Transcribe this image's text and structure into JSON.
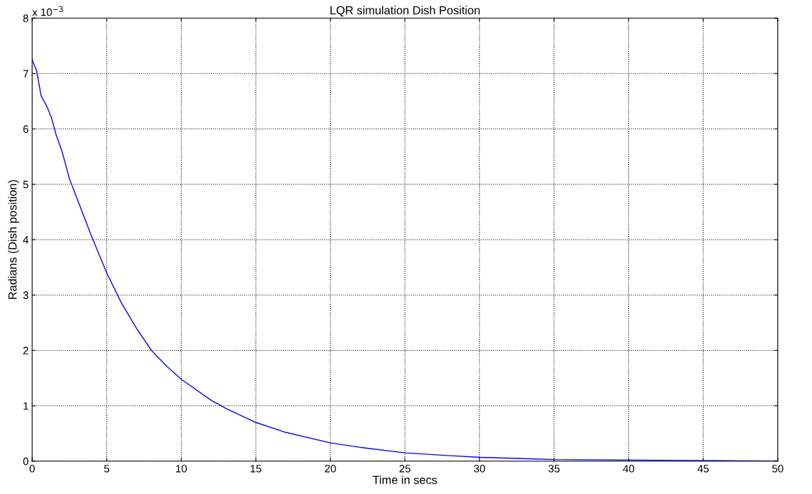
{
  "chart_data": {
    "type": "line",
    "title": "LQR simulation Dish Position",
    "xlabel": "Time in secs",
    "ylabel": "Radians (Dish position)",
    "annotations": [
      "x 10$^{−3}$"
    ],
    "x": [
      0,
      0.3,
      0.6,
      1,
      1.3,
      1.6,
      2,
      2.5,
      3,
      4,
      5,
      6,
      7,
      8,
      9,
      10,
      12,
      13,
      15,
      17,
      20,
      22,
      25,
      28,
      30,
      35,
      40,
      45,
      50
    ],
    "series": [
      {
        "color": "#0000ff",
        "values": [
          7.25,
          7.05,
          6.6,
          6.4,
          6.2,
          5.9,
          5.6,
          5.1,
          4.75,
          4.05,
          3.4,
          2.85,
          2.4,
          2.0,
          1.72,
          1.48,
          1.1,
          0.95,
          0.7,
          0.52,
          0.33,
          0.25,
          0.15,
          0.1,
          0.07,
          0.03,
          0.02,
          0.01,
          0.0
        ]
      }
    ],
    "xlim": [
      0,
      50
    ],
    "xticks": [
      0,
      5,
      10,
      15,
      20,
      25,
      30,
      35,
      40,
      45,
      50
    ],
    "ylim": [
      0,
      8
    ],
    "yticks": [
      0,
      1,
      2,
      3,
      4,
      5,
      6,
      7,
      8
    ],
    "grid": true,
    "line_style": "solid",
    "marker": "none"
  }
}
